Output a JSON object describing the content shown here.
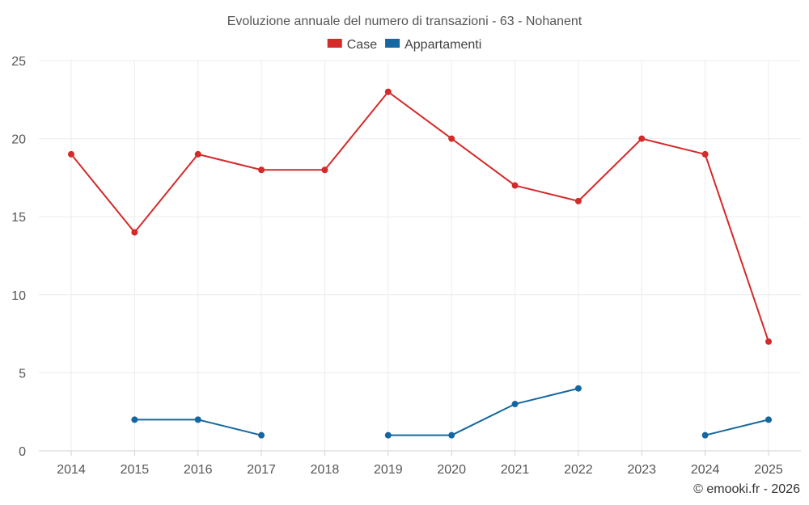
{
  "chart_data": {
    "type": "line",
    "title": "Evoluzione annuale del numero di transazioni - 63 - Nohanent",
    "categories": [
      "2014",
      "2015",
      "2016",
      "2017",
      "2018",
      "2019",
      "2020",
      "2021",
      "2022",
      "2023",
      "2024",
      "2025"
    ],
    "series": [
      {
        "name": "Case",
        "color": "#d42a2a",
        "values": [
          19,
          14,
          19,
          18,
          18,
          23,
          20,
          17,
          16,
          20,
          19,
          7
        ]
      },
      {
        "name": "Appartamenti",
        "color": "#1467a0",
        "values": [
          null,
          2,
          2,
          1,
          null,
          1,
          1,
          3,
          4,
          null,
          1,
          2
        ]
      }
    ],
    "ylim": [
      0,
      25
    ],
    "yticks": [
      0,
      5,
      10,
      15,
      20,
      25
    ],
    "xlabel": "",
    "ylabel": "",
    "grid": true,
    "legend": "top-center"
  },
  "credit": "© emooki.fr - 2026"
}
